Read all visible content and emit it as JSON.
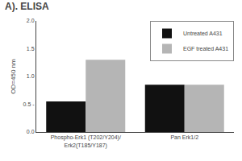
{
  "chart_data": {
    "type": "bar",
    "title": "A). ELISA",
    "ylabel": "OD=450 nm",
    "categories": [
      "Phospho-Erk1 (T202/Y204)/\nErk2(T185/Y187)",
      "Pan Erk1/2"
    ],
    "series": [
      {
        "name": "Untreated A431",
        "color": "#111111",
        "values": [
          0.55,
          0.85
        ]
      },
      {
        "name": "EGF treated A431",
        "color": "#b5b5b5",
        "values": [
          1.3,
          0.85
        ]
      }
    ],
    "ylim": [
      0,
      2.0
    ],
    "yticks": [
      {
        "value": 0.0,
        "label": "0.0"
      },
      {
        "value": 0.5,
        "label": "0.5 -"
      },
      {
        "value": 1.0,
        "label": "1.0"
      },
      {
        "value": 1.5,
        "label": "1.5"
      },
      {
        "value": 2.0,
        "label": "2.0"
      }
    ],
    "grid": false,
    "legend": "upper right"
  }
}
